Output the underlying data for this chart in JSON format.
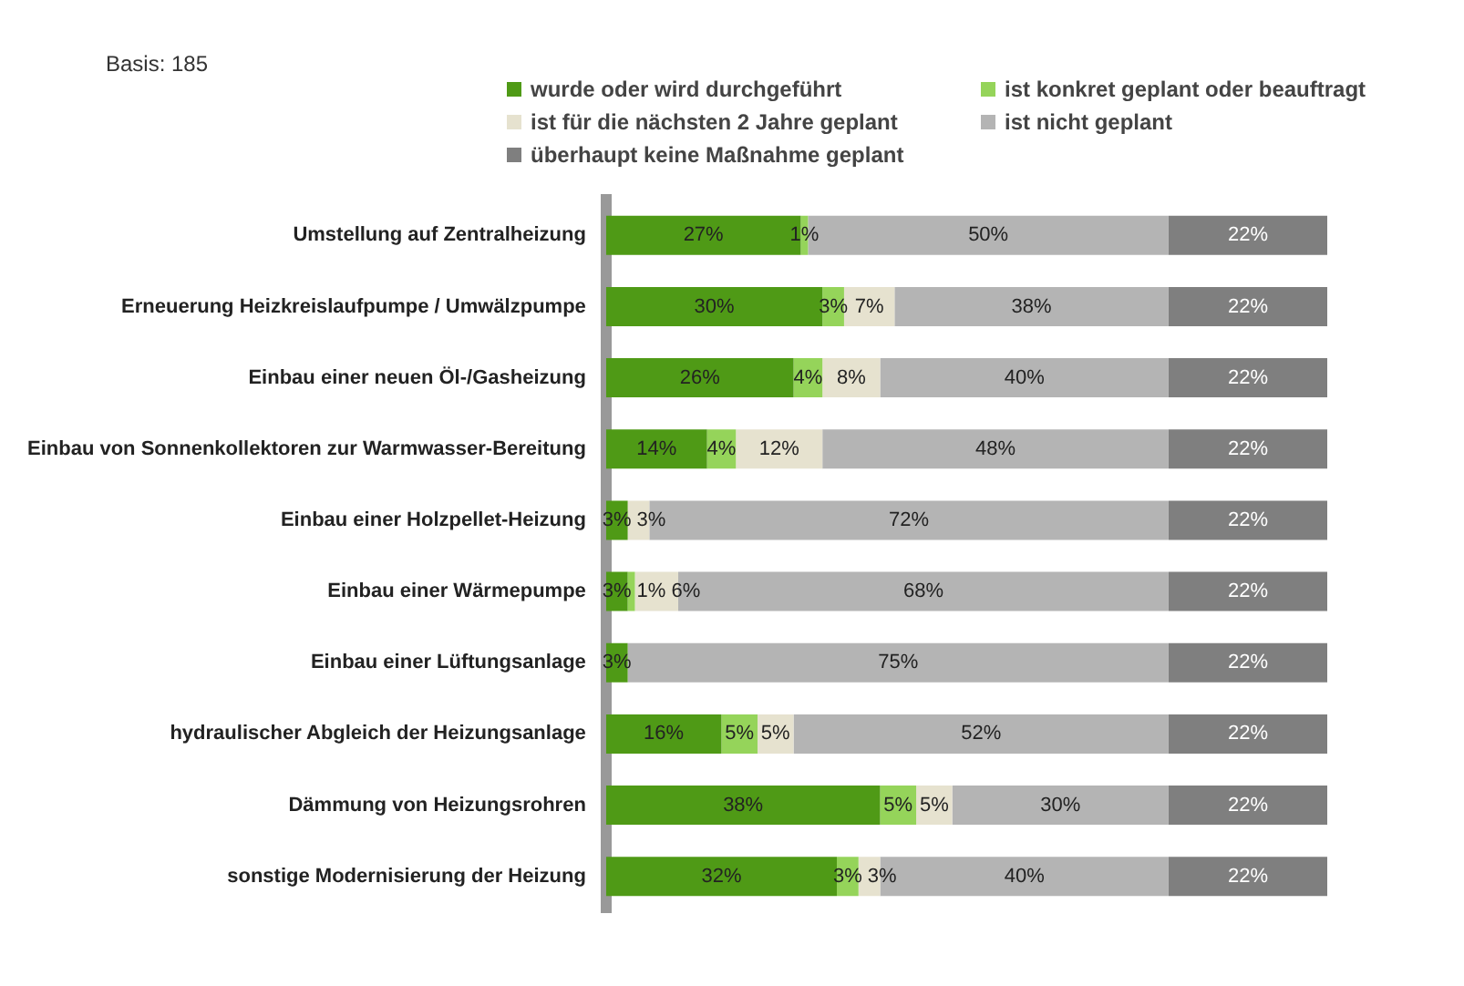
{
  "chart_data": {
    "type": "bar",
    "orientation": "horizontal",
    "stacked": true,
    "legend": "top",
    "grid": false,
    "tick_labels": "y",
    "annotations": [
      "Basis: 185"
    ],
    "categories": [
      "Umstellung auf Zentralheizung",
      "Erneuerung Heizkreislaufpumpe / Umwälzpumpe",
      "Einbau einer neuen Öl-/Gasheizung",
      "Einbau von Sonnenkollektoren zur Warmwasser-Bereitung",
      "Einbau einer Holzpellet-Heizung",
      "Einbau einer Wärmepumpe",
      "Einbau einer Lüftungsanlage",
      "hydraulischer Abgleich der Heizungsanlage",
      "Dämmung von Heizungsrohren",
      "sonstige Modernisierung der Heizung"
    ],
    "series": [
      {
        "name": "wurde oder wird durchgeführt",
        "color": "#4f9a16",
        "values": [
          27,
          30,
          26,
          14,
          3,
          3,
          3,
          16,
          38,
          32
        ],
        "value_labels": [
          "27%",
          "30%",
          "26%",
          "14%",
          "3%",
          "3%",
          "3%",
          "16%",
          "38%",
          "32%"
        ]
      },
      {
        "name": "ist konkret geplant oder beauftragt",
        "color": "#95d45a",
        "values": [
          1,
          3,
          4,
          4,
          null,
          1,
          null,
          5,
          5,
          3
        ],
        "value_labels": [
          "1%",
          "3%",
          "4%",
          "4%",
          null,
          "1%",
          null,
          "5%",
          "5%",
          "3%"
        ]
      },
      {
        "name": "ist für die nächsten 2 Jahre geplant",
        "color": "#e6e2cf",
        "values": [
          null,
          7,
          8,
          12,
          3,
          6,
          null,
          5,
          5,
          3
        ],
        "value_labels": [
          null,
          "7%",
          "8%",
          "12%",
          "3%",
          "6%",
          null,
          "5%",
          "5%",
          "3%"
        ]
      },
      {
        "name": "ist nicht geplant",
        "color": "#b4b4b4",
        "values": [
          50,
          38,
          40,
          48,
          72,
          68,
          75,
          52,
          30,
          40
        ],
        "value_labels": [
          "50%",
          "38%",
          "40%",
          "48%",
          "72%",
          "68%",
          "75%",
          "52%",
          "30%",
          "40%"
        ]
      },
      {
        "name": "überhaupt keine Maßnahme geplant",
        "color": "#7f7f7f",
        "values": [
          22,
          22,
          22,
          22,
          22,
          22,
          22,
          22,
          22,
          22
        ],
        "value_labels": [
          "22%",
          "22%",
          "22%",
          "22%",
          "22%",
          "22%",
          "22%",
          "22%",
          "22%",
          "22%"
        ]
      }
    ]
  }
}
